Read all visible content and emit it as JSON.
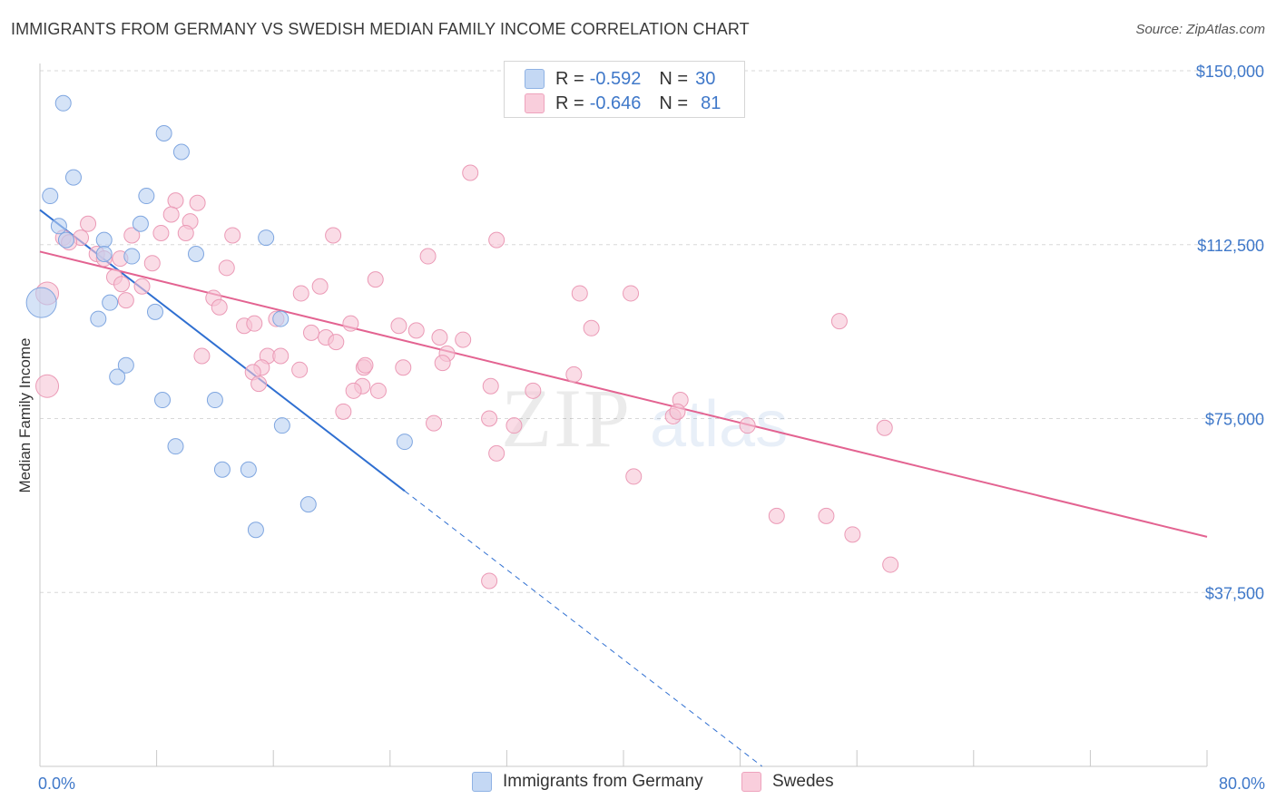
{
  "header": {
    "title": "IMMIGRANTS FROM GERMANY VS SWEDISH MEDIAN FAMILY INCOME CORRELATION CHART",
    "source": "Source: ZipAtlas.com"
  },
  "legend": {
    "rows": [
      {
        "r_label": "R =",
        "r_value": "-0.592",
        "n_label": "N =",
        "n_value": "30"
      },
      {
        "r_label": "R =",
        "r_value": "-0.646",
        "n_label": "N =",
        "n_value": "81"
      }
    ]
  },
  "bottom_legend": {
    "germany": "Immigrants from Germany",
    "swedes": "Swedes"
  },
  "colors": {
    "germany_fill": "#b9d0f2",
    "germany_stroke": "#7fa6e0",
    "germany_line": "#2f6fd1",
    "swedes_fill": "#f7c5d5",
    "swedes_stroke": "#eb9ab6",
    "swedes_line": "#e36391",
    "axis_text": "#3f78c9",
    "grid": "#d8d8d8"
  },
  "chart_data": {
    "type": "scatter",
    "title": "IMMIGRANTS FROM GERMANY VS SWEDISH MEDIAN FAMILY INCOME CORRELATION CHART",
    "xlabel": "",
    "ylabel": "Median Family Income",
    "xlim": [
      0,
      80
    ],
    "ylim": [
      0,
      155000
    ],
    "x_tick_labels": [
      "0.0%",
      "80.0%"
    ],
    "y_ticks": [
      37500,
      75000,
      112500,
      150000
    ],
    "y_tick_labels": [
      "$37,500",
      "$75,000",
      "$112,500",
      "$150,000"
    ],
    "grid": true,
    "legend_position": "top-center",
    "series": [
      {
        "name": "Immigrants from Germany",
        "r": -0.592,
        "n": 30,
        "points": [
          [
            1.6,
            143000
          ],
          [
            8.5,
            136500
          ],
          [
            9.7,
            132500
          ],
          [
            2.3,
            127000
          ],
          [
            0.7,
            123000
          ],
          [
            7.3,
            123000
          ],
          [
            1.3,
            116500
          ],
          [
            6.9,
            117000
          ],
          [
            4.4,
            113500
          ],
          [
            1.8,
            113500
          ],
          [
            15.5,
            114000
          ],
          [
            4.4,
            110500
          ],
          [
            6.3,
            110000
          ],
          [
            10.7,
            110500
          ],
          [
            0.1,
            100000
          ],
          [
            4.8,
            100000
          ],
          [
            7.9,
            98000
          ],
          [
            4.0,
            96500
          ],
          [
            16.5,
            96500
          ],
          [
            5.9,
            86500
          ],
          [
            5.3,
            84000
          ],
          [
            8.4,
            79000
          ],
          [
            12.0,
            79000
          ],
          [
            16.6,
            73500
          ],
          [
            25.0,
            70000
          ],
          [
            9.3,
            69000
          ],
          [
            12.5,
            64000
          ],
          [
            14.3,
            64000
          ],
          [
            18.4,
            56500
          ],
          [
            14.8,
            51000
          ]
        ],
        "sizes": [
          1,
          1,
          1,
          1,
          1,
          1,
          1,
          1,
          1,
          1,
          1,
          1,
          1,
          1,
          3,
          1,
          1,
          1,
          1,
          1,
          1,
          1,
          1,
          1,
          1,
          1,
          1,
          1,
          1,
          1
        ],
        "trend": {
          "x_start": 0,
          "y_start": 120000,
          "x_solid_end": 25,
          "x_end": 49.5,
          "y_end": 0
        }
      },
      {
        "name": "Swedes",
        "r": -0.646,
        "n": 81,
        "points": [
          [
            29.5,
            128000
          ],
          [
            9.3,
            122000
          ],
          [
            10.8,
            121500
          ],
          [
            9.0,
            119000
          ],
          [
            3.3,
            117000
          ],
          [
            10.3,
            117500
          ],
          [
            8.3,
            115000
          ],
          [
            6.3,
            114500
          ],
          [
            10.0,
            115000
          ],
          [
            13.2,
            114500
          ],
          [
            20.1,
            114500
          ],
          [
            1.6,
            114000
          ],
          [
            2.8,
            114000
          ],
          [
            2.0,
            113000
          ],
          [
            31.3,
            113500
          ],
          [
            26.6,
            110000
          ],
          [
            3.9,
            110500
          ],
          [
            5.5,
            109500
          ],
          [
            4.4,
            109500
          ],
          [
            7.7,
            108500
          ],
          [
            12.8,
            107500
          ],
          [
            5.1,
            105500
          ],
          [
            23.0,
            105000
          ],
          [
            5.6,
            104000
          ],
          [
            7.0,
            103500
          ],
          [
            19.2,
            103500
          ],
          [
            17.9,
            102000
          ],
          [
            0.5,
            102000
          ],
          [
            37.0,
            102000
          ],
          [
            40.5,
            102000
          ],
          [
            11.9,
            101000
          ],
          [
            5.9,
            100500
          ],
          [
            12.3,
            99000
          ],
          [
            16.2,
            96500
          ],
          [
            21.3,
            95500
          ],
          [
            14.0,
            95000
          ],
          [
            14.7,
            95500
          ],
          [
            24.6,
            95000
          ],
          [
            37.8,
            94500
          ],
          [
            54.8,
            96000
          ],
          [
            25.8,
            94000
          ],
          [
            18.6,
            93500
          ],
          [
            19.6,
            92500
          ],
          [
            20.3,
            91500
          ],
          [
            27.4,
            92500
          ],
          [
            29.0,
            92000
          ],
          [
            27.9,
            89000
          ],
          [
            15.6,
            88500
          ],
          [
            16.5,
            88500
          ],
          [
            11.1,
            88500
          ],
          [
            27.6,
            87000
          ],
          [
            15.2,
            86000
          ],
          [
            17.8,
            85500
          ],
          [
            24.9,
            86000
          ],
          [
            22.2,
            86000
          ],
          [
            14.6,
            85000
          ],
          [
            36.6,
            84500
          ],
          [
            15.0,
            82500
          ],
          [
            22.1,
            82000
          ],
          [
            30.9,
            82000
          ],
          [
            21.5,
            81000
          ],
          [
            23.2,
            81000
          ],
          [
            33.8,
            81000
          ],
          [
            0.5,
            82000
          ],
          [
            43.9,
            79000
          ],
          [
            20.8,
            76500
          ],
          [
            43.4,
            75500
          ],
          [
            30.8,
            75000
          ],
          [
            27.0,
            74000
          ],
          [
            32.5,
            73500
          ],
          [
            48.5,
            73500
          ],
          [
            57.9,
            73000
          ],
          [
            31.3,
            67500
          ],
          [
            40.7,
            62500
          ],
          [
            50.5,
            54000
          ],
          [
            53.9,
            54000
          ],
          [
            55.7,
            50000
          ],
          [
            58.3,
            43500
          ],
          [
            30.8,
            40000
          ],
          [
            43.7,
            76500
          ],
          [
            22.3,
            86500
          ]
        ],
        "sizes": [
          1,
          1,
          1,
          1,
          1,
          1,
          1,
          1,
          1,
          1,
          1,
          1,
          1,
          1,
          1,
          1,
          1,
          1,
          1,
          1,
          1,
          1,
          1,
          1,
          1,
          1,
          1,
          2,
          1,
          1,
          1,
          1,
          1,
          1,
          1,
          1,
          1,
          1,
          1,
          1,
          1,
          1,
          1,
          1,
          1,
          1,
          1,
          1,
          1,
          1,
          1,
          1,
          1,
          1,
          1,
          1,
          1,
          1,
          1,
          1,
          1,
          1,
          1,
          2,
          1,
          1,
          1,
          1,
          1,
          1,
          1,
          1,
          1,
          1,
          1,
          1,
          1,
          1,
          1,
          1,
          1
        ],
        "trend": {
          "x_start": 0,
          "y_start": 111000,
          "x_end": 80,
          "y_end": 49500
        }
      }
    ]
  }
}
